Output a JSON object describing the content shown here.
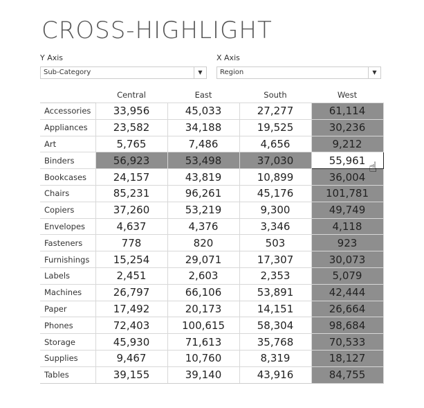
{
  "title": "CROSS-HIGHLIGHT",
  "filters": {
    "y_axis": {
      "label": "Y Axis",
      "value": "Sub-Category"
    },
    "x_axis": {
      "label": "X Axis",
      "value": "Region"
    }
  },
  "colors": {
    "highlight": "#8e8e8e",
    "grid": "#d8d8d8"
  },
  "table": {
    "columns": [
      "Central",
      "East",
      "South",
      "West"
    ],
    "highlighted_column": "West",
    "highlighted_row": "Binders",
    "selected_cell": {
      "row": "Binders",
      "column": "West"
    },
    "rows": [
      {
        "label": "Accessories",
        "values": [
          "33,956",
          "45,033",
          "27,277",
          "61,114"
        ]
      },
      {
        "label": "Appliances",
        "values": [
          "23,582",
          "34,188",
          "19,525",
          "30,236"
        ]
      },
      {
        "label": "Art",
        "values": [
          "5,765",
          "7,486",
          "4,656",
          "9,212"
        ]
      },
      {
        "label": "Binders",
        "values": [
          "56,923",
          "53,498",
          "37,030",
          "55,961"
        ]
      },
      {
        "label": "Bookcases",
        "values": [
          "24,157",
          "43,819",
          "10,899",
          "36,004"
        ]
      },
      {
        "label": "Chairs",
        "values": [
          "85,231",
          "96,261",
          "45,176",
          "101,781"
        ]
      },
      {
        "label": "Copiers",
        "values": [
          "37,260",
          "53,219",
          "9,300",
          "49,749"
        ]
      },
      {
        "label": "Envelopes",
        "values": [
          "4,637",
          "4,376",
          "3,346",
          "4,118"
        ]
      },
      {
        "label": "Fasteners",
        "values": [
          "778",
          "820",
          "503",
          "923"
        ]
      },
      {
        "label": "Furnishings",
        "values": [
          "15,254",
          "29,071",
          "17,307",
          "30,073"
        ]
      },
      {
        "label": "Labels",
        "values": [
          "2,451",
          "2,603",
          "2,353",
          "5,079"
        ]
      },
      {
        "label": "Machines",
        "values": [
          "26,797",
          "66,106",
          "53,891",
          "42,444"
        ]
      },
      {
        "label": "Paper",
        "values": [
          "17,492",
          "20,173",
          "14,151",
          "26,664"
        ]
      },
      {
        "label": "Phones",
        "values": [
          "72,403",
          "100,615",
          "58,304",
          "98,684"
        ]
      },
      {
        "label": "Storage",
        "values": [
          "45,930",
          "71,613",
          "35,768",
          "70,533"
        ]
      },
      {
        "label": "Supplies",
        "values": [
          "9,467",
          "10,760",
          "8,319",
          "18,127"
        ]
      },
      {
        "label": "Tables",
        "values": [
          "39,155",
          "39,140",
          "43,916",
          "84,755"
        ]
      }
    ]
  }
}
